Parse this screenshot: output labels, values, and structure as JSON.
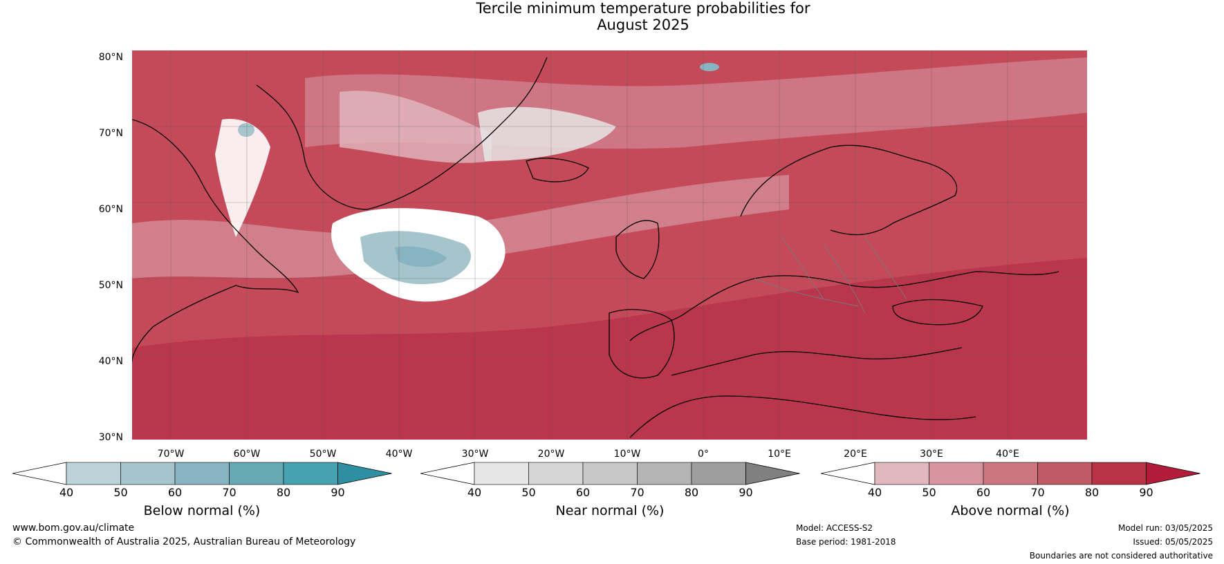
{
  "title_line1": "Tercile minimum temperature probabilities for",
  "title_line2": "August 2025",
  "lat_labels": [
    "80°N",
    "70°N",
    "60°N",
    "50°N",
    "40°N",
    "30°N"
  ],
  "lon_labels": [
    "70°W",
    "60°W",
    "50°W",
    "40°W",
    "30°W",
    "20°W",
    "10°W",
    "0°",
    "10°E",
    "20°E",
    "30°E",
    "40°E"
  ],
  "colorbars": [
    {
      "label": "Below normal (%)",
      "ticks": [
        "40",
        "50",
        "60",
        "70",
        "80",
        "90"
      ],
      "colors": [
        "#ffffff",
        "#bcd3da",
        "#a5c4cc",
        "#88b3c0",
        "#68a9b6",
        "#46a1b0",
        "#2e8fa3"
      ]
    },
    {
      "label": "Near normal (%)",
      "ticks": [
        "40",
        "50",
        "60",
        "70",
        "80",
        "90"
      ],
      "colors": [
        "#ffffff",
        "#e6e6e6",
        "#d6d6d6",
        "#c8c8c8",
        "#b4b4b4",
        "#9e9e9e",
        "#808080"
      ]
    },
    {
      "label": "Above normal (%)",
      "ticks": [
        "40",
        "50",
        "60",
        "70",
        "80",
        "90"
      ],
      "colors": [
        "#ffffff",
        "#e2b8bf",
        "#d6959f",
        "#cc7780",
        "#c25a66",
        "#b83346",
        "#b21c3a"
      ]
    }
  ],
  "footer": {
    "url": "www.bom.gov.au/climate",
    "copyright": "© Commonwealth of Australia 2025, Australian Bureau of Meteorology",
    "model": "Model: ACCESS-S2",
    "base_period": "Base period: 1981-2018",
    "model_run": "Model run: 03/05/2025",
    "issued": "Issued: 05/05/2025",
    "disclaimer": "Boundaries are not considered authoritative"
  },
  "map_colors": {
    "background": "#c8505e",
    "coast": "#000000",
    "border": "#777777",
    "grid": "#555555"
  }
}
